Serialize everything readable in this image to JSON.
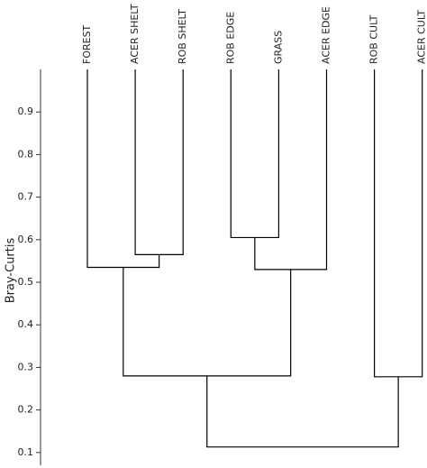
{
  "chart_data": {
    "type": "dendrogram",
    "y_label": "Bray-Curtis",
    "ylim": [
      0.07,
      1.0
    ],
    "yticks": [
      0.1,
      0.2,
      0.3,
      0.4,
      0.5,
      0.6,
      0.7,
      0.8,
      0.9
    ],
    "color": "#000000",
    "tree": {
      "height": 0.113,
      "children": [
        {
          "height": 0.28,
          "children": [
            {
              "height": 0.535,
              "children": [
                {
                  "label": "FOREST"
                },
                {
                  "height": 0.565,
                  "children": [
                    {
                      "label": "ACER SHELT"
                    },
                    {
                      "label": "ROB SHELT"
                    }
                  ]
                }
              ]
            },
            {
              "height": 0.53,
              "children": [
                {
                  "height": 0.605,
                  "children": [
                    {
                      "label": "ROB EDGE"
                    },
                    {
                      "label": "GRASS"
                    }
                  ]
                },
                {
                  "label": "ACER EDGE"
                }
              ]
            }
          ]
        },
        {
          "height": 0.278,
          "children": [
            {
              "label": "ROB CULT"
            },
            {
              "label": "ACER CULT"
            }
          ]
        }
      ]
    }
  }
}
